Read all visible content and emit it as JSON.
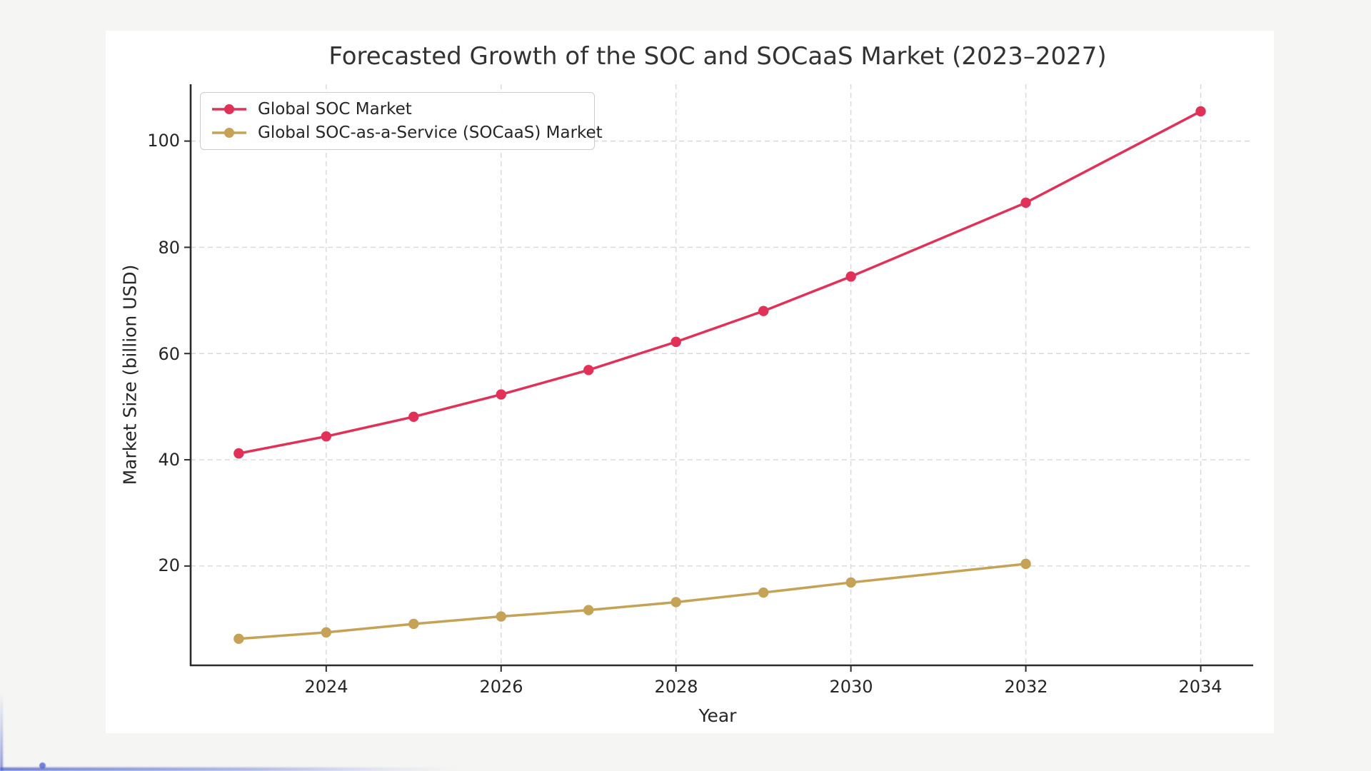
{
  "page": {
    "figure_background": "#ffffff",
    "margin_background": "#f5f5f3"
  },
  "chart_data": {
    "type": "line",
    "title": "Forecasted Growth of the SOC and SOCaaS Market (2023–2027)",
    "xlabel": "Year",
    "ylabel": "Market Size (billion USD)",
    "x_tick_labels": [
      "2024",
      "2026",
      "2028",
      "2030",
      "2032",
      "2034"
    ],
    "x_ticks": [
      2024,
      2026,
      2028,
      2030,
      2032,
      2034
    ],
    "y_tick_labels": [
      "20",
      "40",
      "60",
      "80",
      "100"
    ],
    "y_ticks": [
      20,
      40,
      60,
      80,
      100
    ],
    "xlim": [
      2022.45,
      2034.6
    ],
    "ylim": [
      1.3,
      110.7
    ],
    "grid": true,
    "grid_style": "dashed",
    "legend_position": "upper left",
    "series": [
      {
        "name": "Global SOC Market",
        "color": "#E23158",
        "marker": "circle",
        "x": [
          2023,
          2024,
          2025,
          2026,
          2027,
          2028,
          2029,
          2030,
          2032,
          2034
        ],
        "values": [
          41.2,
          44.4,
          48.1,
          52.3,
          56.9,
          62.2,
          68.0,
          74.5,
          88.4,
          105.6
        ]
      },
      {
        "name": "Global SOC-as-a-Service (SOCaaS) Market",
        "color": "#C6A257",
        "marker": "circle",
        "x": [
          2023,
          2024,
          2025,
          2026,
          2027,
          2028,
          2029,
          2030,
          2032
        ],
        "values": [
          6.3,
          7.5,
          9.1,
          10.5,
          11.7,
          13.2,
          15.0,
          16.9,
          20.4
        ]
      }
    ]
  }
}
